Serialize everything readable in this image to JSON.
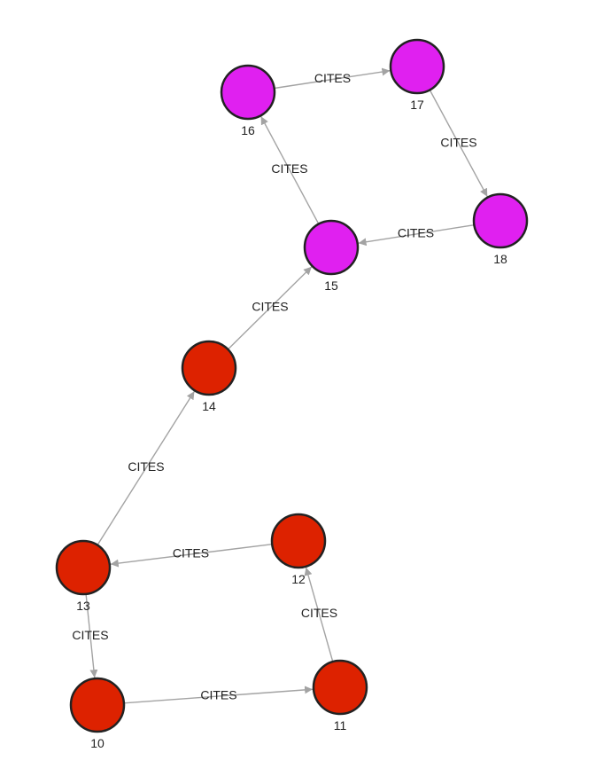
{
  "graph": {
    "colors": {
      "red": "#dd2200",
      "magenta": "#e020f0",
      "edge": "#a3a3a3",
      "outline": "#222222"
    },
    "nodes": [
      {
        "id": "10",
        "label": "10",
        "color": "red"
      },
      {
        "id": "11",
        "label": "11",
        "color": "red"
      },
      {
        "id": "12",
        "label": "12",
        "color": "red"
      },
      {
        "id": "13",
        "label": "13",
        "color": "red"
      },
      {
        "id": "14",
        "label": "14",
        "color": "red"
      },
      {
        "id": "15",
        "label": "15",
        "color": "magenta"
      },
      {
        "id": "16",
        "label": "16",
        "color": "magenta"
      },
      {
        "id": "17",
        "label": "17",
        "color": "magenta"
      },
      {
        "id": "18",
        "label": "18",
        "color": "magenta"
      }
    ],
    "edges": [
      {
        "from": "10",
        "to": "11",
        "label": "CITES"
      },
      {
        "from": "11",
        "to": "12",
        "label": "CITES"
      },
      {
        "from": "12",
        "to": "13",
        "label": "CITES"
      },
      {
        "from": "13",
        "to": "10",
        "label": "CITES"
      },
      {
        "from": "13",
        "to": "14",
        "label": "CITES"
      },
      {
        "from": "14",
        "to": "15",
        "label": "CITES"
      },
      {
        "from": "15",
        "to": "16",
        "label": "CITES"
      },
      {
        "from": "16",
        "to": "17",
        "label": "CITES"
      },
      {
        "from": "17",
        "to": "18",
        "label": "CITES"
      },
      {
        "from": "18",
        "to": "15",
        "label": "CITES"
      }
    ]
  }
}
